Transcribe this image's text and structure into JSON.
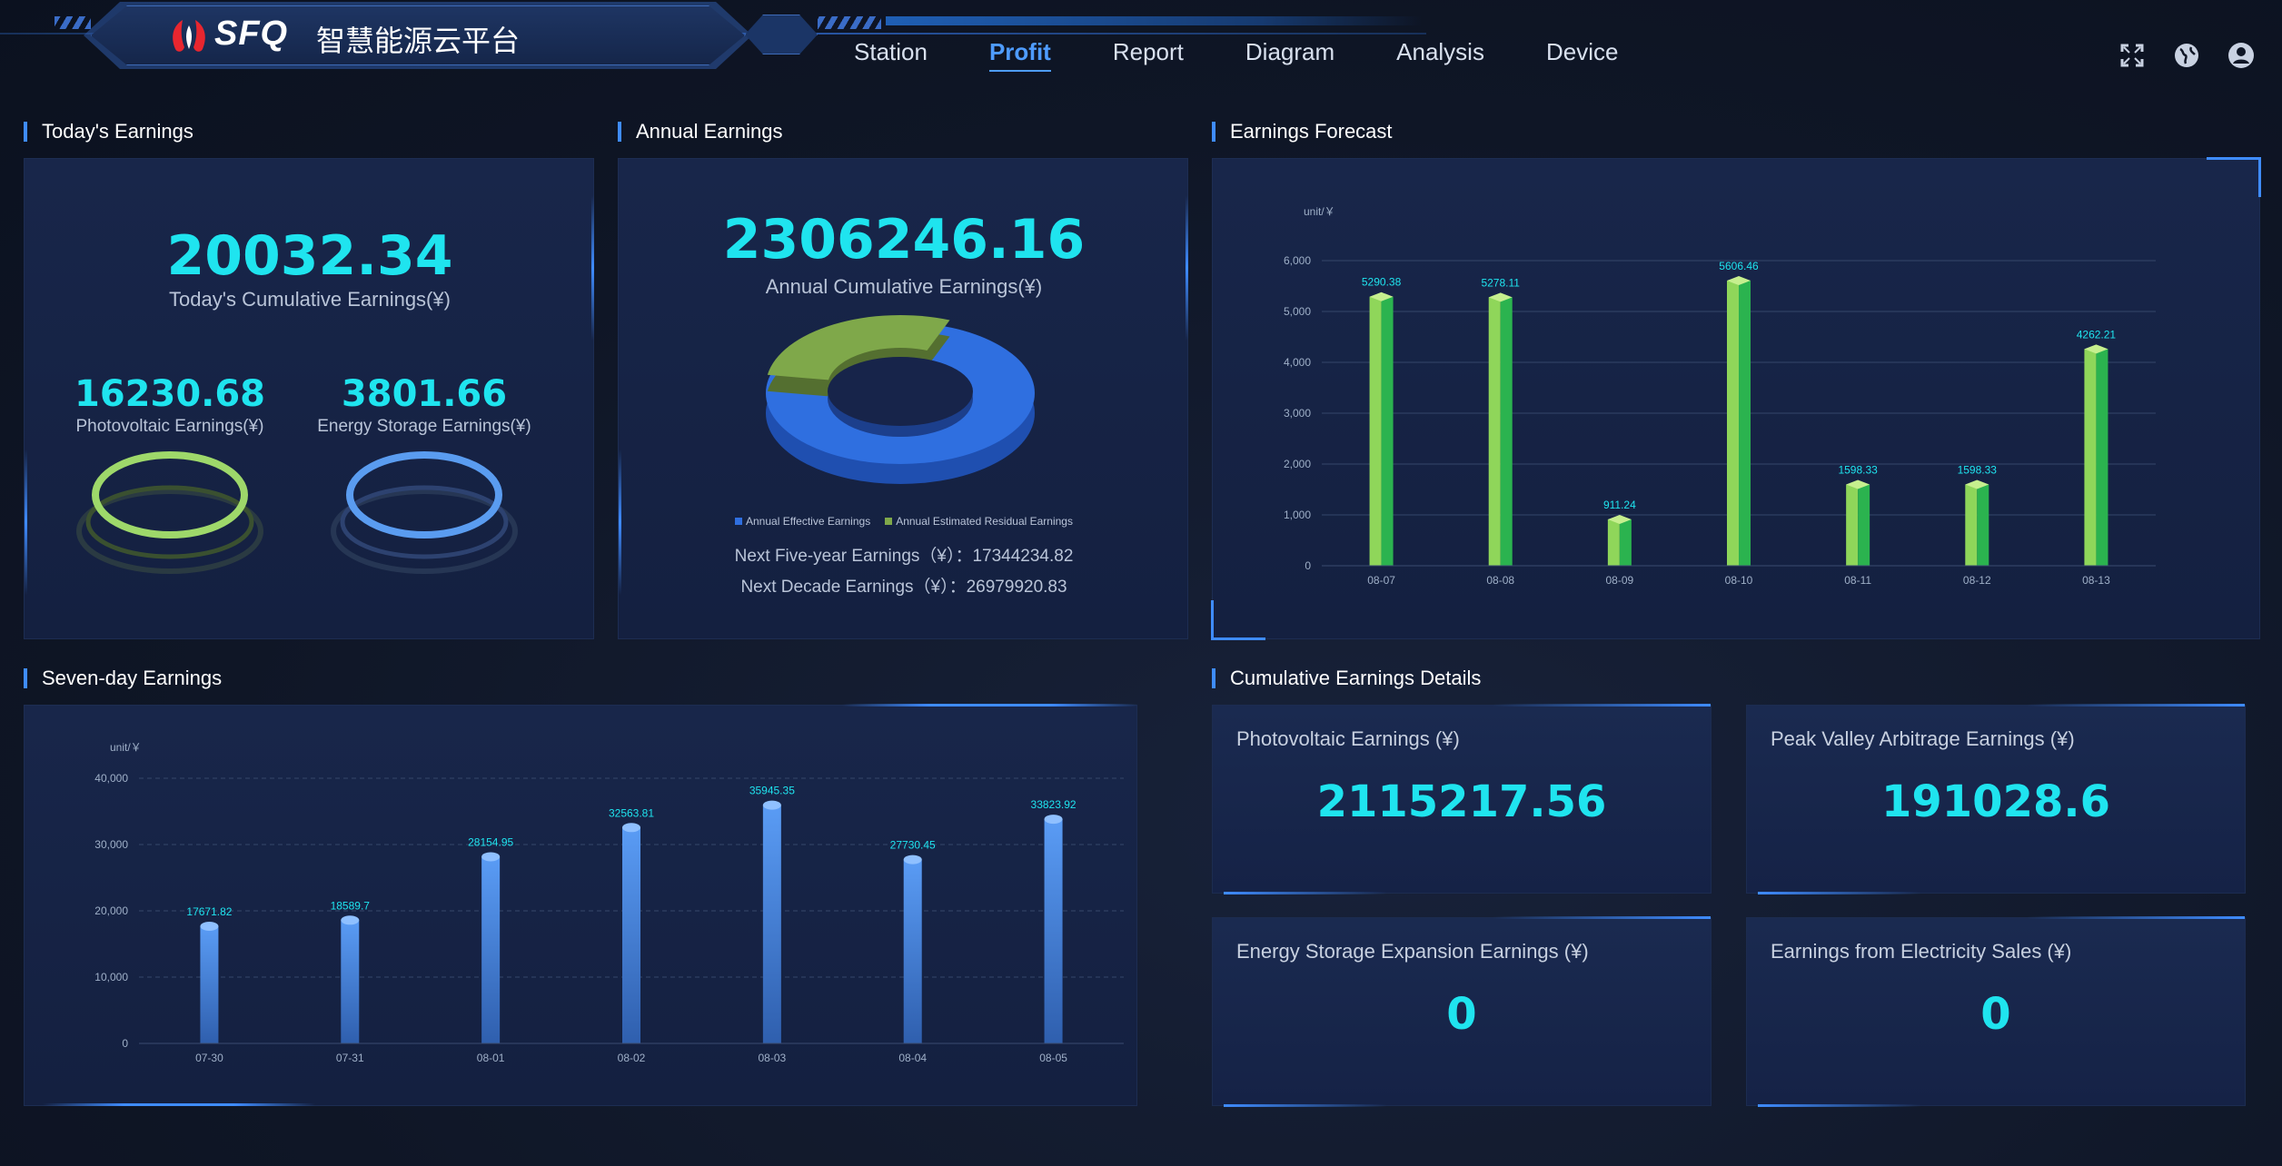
{
  "header": {
    "brand": "SFQ",
    "brand_cn": "智慧能源云平台",
    "nav": [
      "Station",
      "Profit",
      "Report",
      "Diagram",
      "Analysis",
      "Device"
    ],
    "active_nav": "Profit",
    "icons": [
      "fullscreen-icon",
      "globe-icon",
      "user-icon"
    ]
  },
  "todays_earnings": {
    "title": "Today's Earnings",
    "total": "20032.34",
    "total_label": "Today's Cumulative Earnings(¥)",
    "pv_value": "16230.68",
    "pv_label": "Photovoltaic Earnings(¥)",
    "storage_value": "3801.66",
    "storage_label": "Energy Storage Earnings(¥)"
  },
  "annual_earnings": {
    "title": "Annual Earnings",
    "total": "2306246.16",
    "total_label": "Annual Cumulative Earnings(¥)",
    "legend_effective": "Annual Effective Earnings",
    "legend_residual": "Annual Estimated Residual Earnings",
    "next_five": "Next Five-year Earnings（¥）：17344234.82",
    "next_decade": "Next Decade Earnings（¥）：26979920.83",
    "colors": {
      "effective": "#2f6fe0",
      "residual": "#7fa84a"
    }
  },
  "forecast": {
    "title": "Earnings Forecast",
    "unit": "unit/￥"
  },
  "seven_day": {
    "title": "Seven-day Earnings",
    "unit": "unit/￥"
  },
  "details": {
    "title": "Cumulative Earnings Details",
    "cards": [
      {
        "label": "Photovoltaic Earnings (¥)",
        "value": "2115217.56"
      },
      {
        "label": "Peak Valley Arbitrage Earnings (¥)",
        "value": "191028.6"
      },
      {
        "label": "Energy Storage Expansion Earnings (¥)",
        "value": "0"
      },
      {
        "label": "Earnings from Electricity Sales (¥)",
        "value": "0"
      }
    ]
  },
  "chart_data": [
    {
      "type": "pie",
      "title": "",
      "categories": [
        "Annual Effective Earnings",
        "Annual Estimated Residual Earnings"
      ],
      "values": [
        70,
        30
      ]
    },
    {
      "type": "bar",
      "title": "",
      "categories": [
        "08-07",
        "08-08",
        "08-09",
        "08-10",
        "08-11",
        "08-12",
        "08-13"
      ],
      "values": [
        5290.38,
        5278.11,
        911.24,
        5606.46,
        1598.33,
        1598.33,
        4262.21
      ],
      "labels": [
        "5290.38",
        "5278.11",
        "911.24",
        "5606.46",
        "1598.33",
        "1598.33",
        "4262.21"
      ],
      "yticks": [
        "0",
        "1,000",
        "2,000",
        "3,000",
        "4,000",
        "5,000",
        "6,000"
      ],
      "ylim": [
        0,
        6000
      ],
      "grid": true,
      "colors": {
        "bar": "#8fd65a",
        "bar_dark": "#2bb34f"
      }
    },
    {
      "type": "bar",
      "title": "",
      "categories": [
        "07-30",
        "07-31",
        "08-01",
        "08-02",
        "08-03",
        "08-04",
        "08-05"
      ],
      "values": [
        17671.82,
        18589.7,
        28154.95,
        32563.81,
        35945.35,
        27730.45,
        33823.92
      ],
      "labels": [
        "17671.82",
        "18589.7",
        "28154.95",
        "32563.81",
        "35945.35",
        "27730.45",
        "33823.92"
      ],
      "yticks": [
        "0",
        "10,000",
        "20,000",
        "30,000",
        "40,000"
      ],
      "ylim": [
        0,
        40000
      ],
      "grid": true,
      "colors": {
        "bar": "#4a8ff0"
      }
    }
  ]
}
